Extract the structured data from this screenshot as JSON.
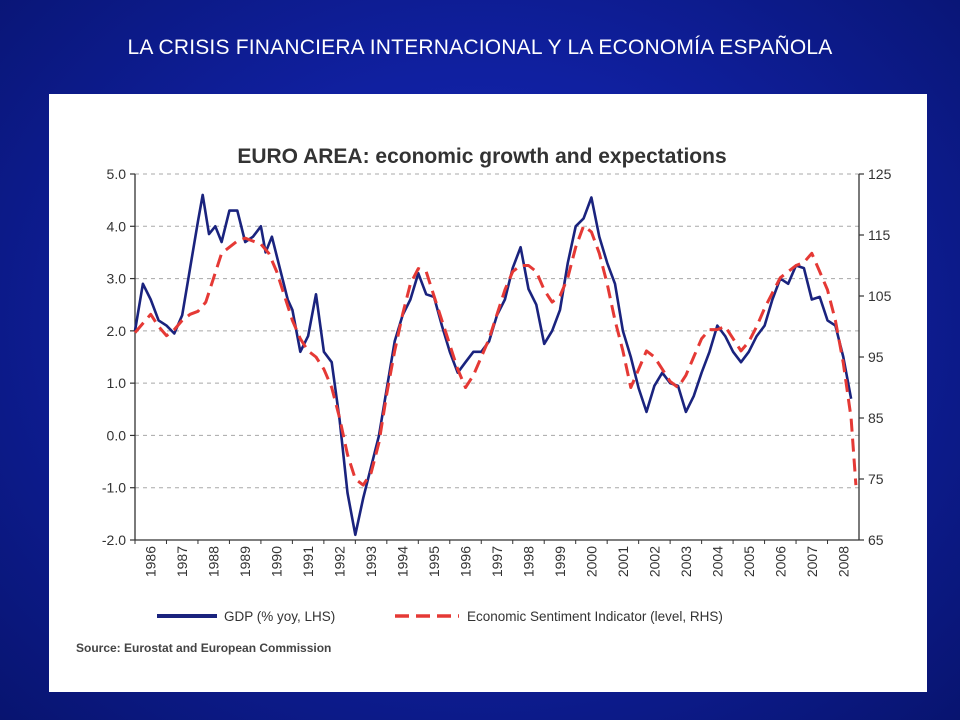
{
  "slide": {
    "title": "LA CRISIS FINANCIERA INTERNACIONAL  Y LA ECONOMÍA ESPAÑOLA"
  },
  "chart_data": {
    "type": "line",
    "title": "EURO AREA: economic growth and expectations",
    "source": "Source: Eurostat and European Commission",
    "x_ticks": [
      "1986",
      "1987",
      "1988",
      "1989",
      "1990",
      "1991",
      "1992",
      "1993",
      "1994",
      "1995",
      "1996",
      "1997",
      "1998",
      "1999",
      "2000",
      "2001",
      "2002",
      "2003",
      "2004",
      "2005",
      "2006",
      "2007",
      "2008"
    ],
    "x_range": [
      1986,
      2009
    ],
    "y_left": {
      "range": [
        -2.0,
        5.0
      ],
      "ticks": [
        "5.0",
        "4.0",
        "3.0",
        "2.0",
        "1.0",
        "0.0",
        "-1.0",
        "-2.0"
      ]
    },
    "y_right": {
      "range": [
        65,
        125
      ],
      "ticks": [
        "125",
        "115",
        "105",
        "95",
        "85",
        "75",
        "65"
      ]
    },
    "grid": "horizontal",
    "legend": "bottom",
    "series": [
      {
        "name": "GDP (% yoy, LHS)",
        "axis": "left",
        "color": "#1a237e",
        "style": "solid",
        "points": [
          [
            1986.0,
            2.0
          ],
          [
            1986.25,
            2.9
          ],
          [
            1986.5,
            2.6
          ],
          [
            1986.75,
            2.2
          ],
          [
            1987.0,
            2.1
          ],
          [
            1987.25,
            1.95
          ],
          [
            1987.5,
            2.3
          ],
          [
            1987.75,
            3.2
          ],
          [
            1988.0,
            4.1
          ],
          [
            1988.15,
            4.6
          ],
          [
            1988.35,
            3.85
          ],
          [
            1988.55,
            4.0
          ],
          [
            1988.75,
            3.7
          ],
          [
            1989.0,
            4.3
          ],
          [
            1989.25,
            4.3
          ],
          [
            1989.5,
            3.7
          ],
          [
            1989.75,
            3.8
          ],
          [
            1990.0,
            4.0
          ],
          [
            1990.15,
            3.5
          ],
          [
            1990.35,
            3.8
          ],
          [
            1990.6,
            3.2
          ],
          [
            1990.85,
            2.6
          ],
          [
            1991.0,
            2.4
          ],
          [
            1991.25,
            1.6
          ],
          [
            1991.5,
            1.9
          ],
          [
            1991.75,
            2.7
          ],
          [
            1992.0,
            1.6
          ],
          [
            1992.25,
            1.4
          ],
          [
            1992.5,
            0.3
          ],
          [
            1992.75,
            -1.1
          ],
          [
            1993.0,
            -1.9
          ],
          [
            1993.25,
            -1.2
          ],
          [
            1993.5,
            -0.6
          ],
          [
            1993.75,
            0.0
          ],
          [
            1994.0,
            0.9
          ],
          [
            1994.25,
            1.8
          ],
          [
            1994.5,
            2.3
          ],
          [
            1994.75,
            2.6
          ],
          [
            1995.0,
            3.1
          ],
          [
            1995.25,
            2.7
          ],
          [
            1995.5,
            2.65
          ],
          [
            1995.75,
            2.1
          ],
          [
            1996.0,
            1.6
          ],
          [
            1996.25,
            1.2
          ],
          [
            1996.5,
            1.4
          ],
          [
            1996.75,
            1.6
          ],
          [
            1997.0,
            1.6
          ],
          [
            1997.25,
            1.8
          ],
          [
            1997.5,
            2.3
          ],
          [
            1997.75,
            2.6
          ],
          [
            1998.0,
            3.2
          ],
          [
            1998.25,
            3.6
          ],
          [
            1998.5,
            2.8
          ],
          [
            1998.75,
            2.5
          ],
          [
            1999.0,
            1.75
          ],
          [
            1999.25,
            2.0
          ],
          [
            1999.5,
            2.4
          ],
          [
            1999.75,
            3.3
          ],
          [
            2000.0,
            4.0
          ],
          [
            2000.25,
            4.15
          ],
          [
            2000.5,
            4.55
          ],
          [
            2000.75,
            3.8
          ],
          [
            2001.0,
            3.3
          ],
          [
            2001.25,
            2.9
          ],
          [
            2001.5,
            2.0
          ],
          [
            2001.75,
            1.5
          ],
          [
            2002.0,
            0.9
          ],
          [
            2002.25,
            0.45
          ],
          [
            2002.5,
            0.95
          ],
          [
            2002.75,
            1.2
          ],
          [
            2003.0,
            1.0
          ],
          [
            2003.25,
            0.95
          ],
          [
            2003.5,
            0.45
          ],
          [
            2003.75,
            0.75
          ],
          [
            2004.0,
            1.2
          ],
          [
            2004.25,
            1.6
          ],
          [
            2004.5,
            2.1
          ],
          [
            2004.75,
            1.9
          ],
          [
            2005.0,
            1.6
          ],
          [
            2005.25,
            1.4
          ],
          [
            2005.5,
            1.6
          ],
          [
            2005.75,
            1.9
          ],
          [
            2006.0,
            2.1
          ],
          [
            2006.25,
            2.6
          ],
          [
            2006.5,
            3.0
          ],
          [
            2006.75,
            2.9
          ],
          [
            2007.0,
            3.25
          ],
          [
            2007.25,
            3.2
          ],
          [
            2007.5,
            2.6
          ],
          [
            2007.75,
            2.65
          ],
          [
            2008.0,
            2.2
          ],
          [
            2008.25,
            2.1
          ],
          [
            2008.5,
            1.5
          ],
          [
            2008.75,
            0.7
          ]
        ]
      },
      {
        "name": "Economic Sentiment Indicator (level, RHS)",
        "axis": "right",
        "color": "#e53935",
        "style": "dashed",
        "points": [
          [
            1986.0,
            99
          ],
          [
            1986.25,
            100.5
          ],
          [
            1986.5,
            102
          ],
          [
            1986.75,
            100
          ],
          [
            1987.0,
            98.5
          ],
          [
            1987.25,
            99.5
          ],
          [
            1987.5,
            101
          ],
          [
            1987.75,
            102
          ],
          [
            1988.0,
            102.5
          ],
          [
            1988.25,
            104
          ],
          [
            1988.5,
            108
          ],
          [
            1988.75,
            112
          ],
          [
            1989.0,
            113
          ],
          [
            1989.25,
            114
          ],
          [
            1989.5,
            114.5
          ],
          [
            1989.75,
            114
          ],
          [
            1990.0,
            113.5
          ],
          [
            1990.25,
            112
          ],
          [
            1990.5,
            109
          ],
          [
            1990.75,
            105
          ],
          [
            1991.0,
            101
          ],
          [
            1991.25,
            98
          ],
          [
            1991.5,
            96
          ],
          [
            1991.75,
            95
          ],
          [
            1992.0,
            93
          ],
          [
            1992.25,
            90
          ],
          [
            1992.5,
            85
          ],
          [
            1992.75,
            79
          ],
          [
            1993.0,
            75
          ],
          [
            1993.25,
            74
          ],
          [
            1993.5,
            76
          ],
          [
            1993.75,
            81
          ],
          [
            1994.0,
            89
          ],
          [
            1994.25,
            96
          ],
          [
            1994.5,
            102
          ],
          [
            1994.75,
            107
          ],
          [
            1995.0,
            109.5
          ],
          [
            1995.25,
            109
          ],
          [
            1995.5,
            105
          ],
          [
            1995.75,
            101
          ],
          [
            1996.0,
            97
          ],
          [
            1996.25,
            93
          ],
          [
            1996.5,
            90
          ],
          [
            1996.75,
            92
          ],
          [
            1997.0,
            95
          ],
          [
            1997.25,
            98
          ],
          [
            1997.5,
            102
          ],
          [
            1997.75,
            106
          ],
          [
            1998.0,
            109
          ],
          [
            1998.25,
            110
          ],
          [
            1998.5,
            110
          ],
          [
            1998.75,
            109
          ],
          [
            1999.0,
            106
          ],
          [
            1999.25,
            104
          ],
          [
            1999.5,
            105
          ],
          [
            1999.75,
            108
          ],
          [
            2000.0,
            113
          ],
          [
            2000.25,
            116.5
          ],
          [
            2000.5,
            115.5
          ],
          [
            2000.75,
            112
          ],
          [
            2001.0,
            107
          ],
          [
            2001.25,
            101
          ],
          [
            2001.5,
            96
          ],
          [
            2001.75,
            90
          ],
          [
            2002.0,
            93
          ],
          [
            2002.25,
            96
          ],
          [
            2002.5,
            95
          ],
          [
            2002.75,
            93
          ],
          [
            2003.0,
            91
          ],
          [
            2003.25,
            90
          ],
          [
            2003.5,
            92
          ],
          [
            2003.75,
            95
          ],
          [
            2004.0,
            98
          ],
          [
            2004.25,
            99.5
          ],
          [
            2004.5,
            99.5
          ],
          [
            2004.75,
            100
          ],
          [
            2005.0,
            98
          ],
          [
            2005.25,
            96
          ],
          [
            2005.5,
            97.5
          ],
          [
            2005.75,
            100
          ],
          [
            2006.0,
            103
          ],
          [
            2006.25,
            105.5
          ],
          [
            2006.5,
            108
          ],
          [
            2006.75,
            109
          ],
          [
            2007.0,
            110
          ],
          [
            2007.25,
            110.5
          ],
          [
            2007.5,
            112
          ],
          [
            2007.75,
            109
          ],
          [
            2008.0,
            106
          ],
          [
            2008.25,
            101
          ],
          [
            2008.5,
            94
          ],
          [
            2008.75,
            85
          ],
          [
            2008.9,
            74
          ]
        ]
      }
    ]
  }
}
